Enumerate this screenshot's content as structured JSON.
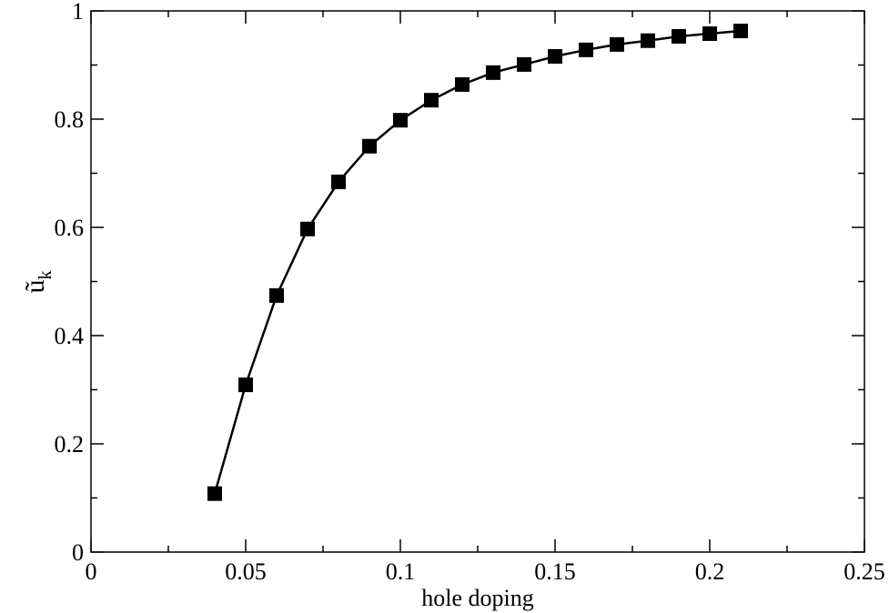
{
  "chart_data": {
    "type": "line",
    "xlabel": "hole doping",
    "ylabel": "ũ",
    "ylabel_subscript": "k",
    "x": [
      0.04,
      0.05,
      0.06,
      0.07,
      0.08,
      0.09,
      0.1,
      0.11,
      0.12,
      0.13,
      0.14,
      0.15,
      0.16,
      0.17,
      0.18,
      0.19,
      0.2,
      0.21
    ],
    "series": [
      {
        "color": "#000000",
        "marker": "square",
        "values": [
          0.108,
          0.309,
          0.474,
          0.597,
          0.684,
          0.75,
          0.798,
          0.835,
          0.864,
          0.886,
          0.901,
          0.916,
          0.928,
          0.938,
          0.945,
          0.953,
          0.958,
          0.963
        ]
      }
    ],
    "xlim": [
      0,
      0.25
    ],
    "xticks": [
      0,
      0.05,
      0.1,
      0.15,
      0.2,
      0.25
    ],
    "xminorticks": [
      0.025,
      0.075,
      0.125,
      0.175,
      0.225
    ],
    "ylim": [
      0,
      1
    ],
    "yticks": [
      0,
      0.2,
      0.4,
      0.6,
      0.8,
      1
    ],
    "yminorticks": [
      0.1,
      0.3,
      0.5,
      0.7,
      0.9
    ]
  }
}
